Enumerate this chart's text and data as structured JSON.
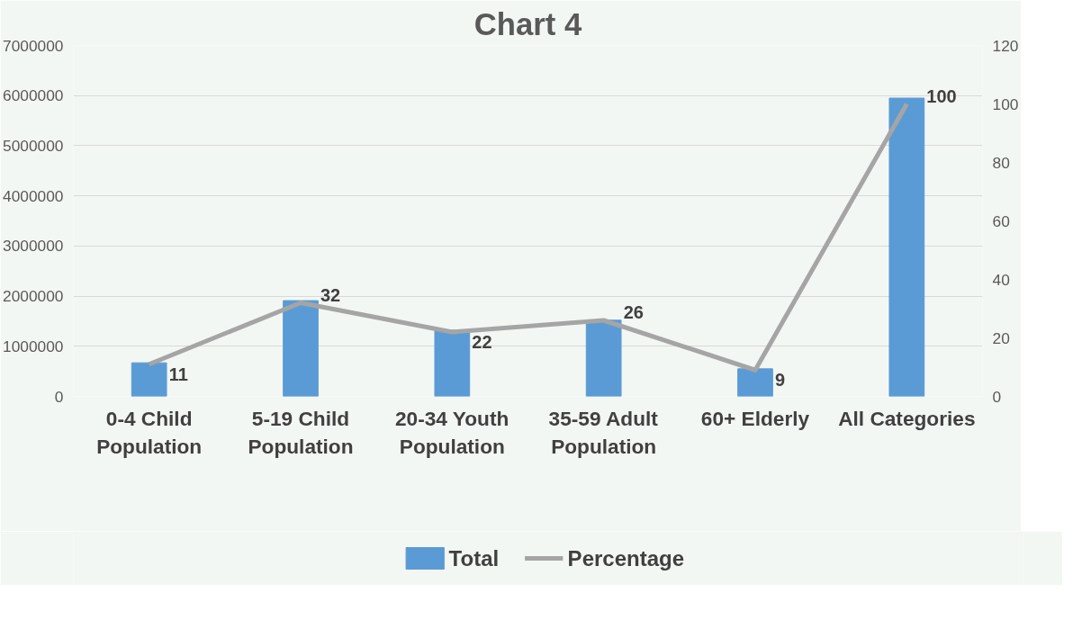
{
  "chart_data": {
    "type": "bar",
    "title": "Chart 4",
    "categories": [
      "0-4 Child Population",
      "5-19 Child Population",
      "20-34 Youth Population",
      "35-59 Adult Population",
      "60+ Elderly",
      "All Categories"
    ],
    "series": [
      {
        "name": "Total",
        "type": "bar",
        "color": "#5b9bd5",
        "values": [
          670000,
          1910000,
          1320000,
          1520000,
          550000,
          5950000
        ]
      },
      {
        "name": "Percentage",
        "type": "line",
        "axis": "y2",
        "color": "#a5a5a5",
        "values": [
          11,
          32,
          22,
          26,
          9,
          100
        ],
        "value_labels": [
          "11",
          "32",
          "22",
          "26",
          "9",
          "100"
        ]
      }
    ],
    "ylim": [
      0,
      7000000
    ],
    "yticks": [
      0,
      1000000,
      2000000,
      3000000,
      4000000,
      5000000,
      6000000,
      7000000
    ],
    "y2lim": [
      0,
      120
    ],
    "y2ticks": [
      0,
      20,
      40,
      60,
      80,
      100,
      120
    ],
    "grid": "y",
    "legend": "bottom",
    "marker": "none",
    "line_style": "solid"
  }
}
